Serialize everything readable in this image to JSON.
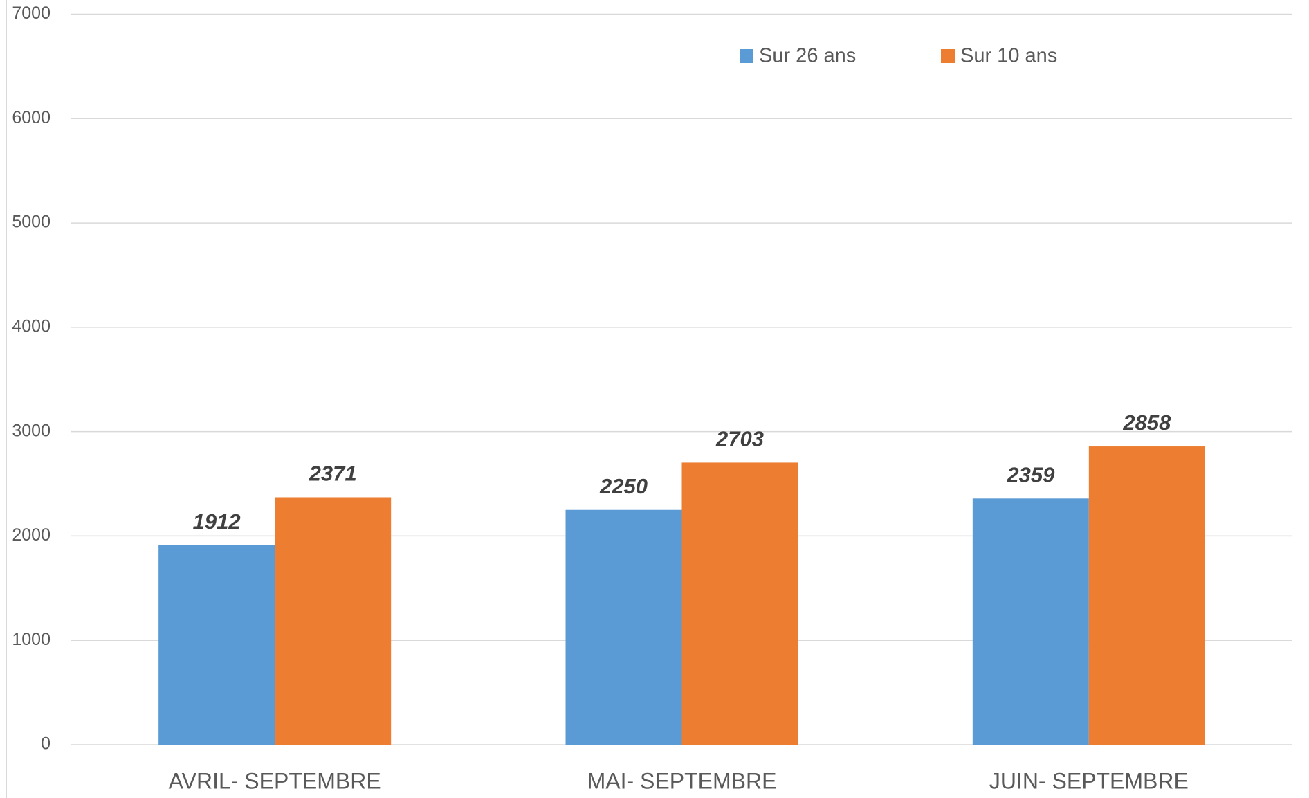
{
  "chart_data": {
    "type": "bar",
    "categories": [
      "AVRIL- SEPTEMBRE",
      "MAI- SEPTEMBRE",
      "JUIN- SEPTEMBRE"
    ],
    "series": [
      {
        "name": "Sur 26 ans",
        "color": "#5b9bd5",
        "values": [
          1912,
          2250,
          2359
        ]
      },
      {
        "name": "Sur 10 ans",
        "color": "#ed7d31",
        "values": [
          2371,
          2703,
          2858
        ]
      }
    ],
    "ylim": [
      0,
      7000
    ],
    "yticks": [
      0,
      1000,
      2000,
      3000,
      4000,
      5000,
      6000,
      7000
    ],
    "grid": true,
    "legend": "top"
  }
}
